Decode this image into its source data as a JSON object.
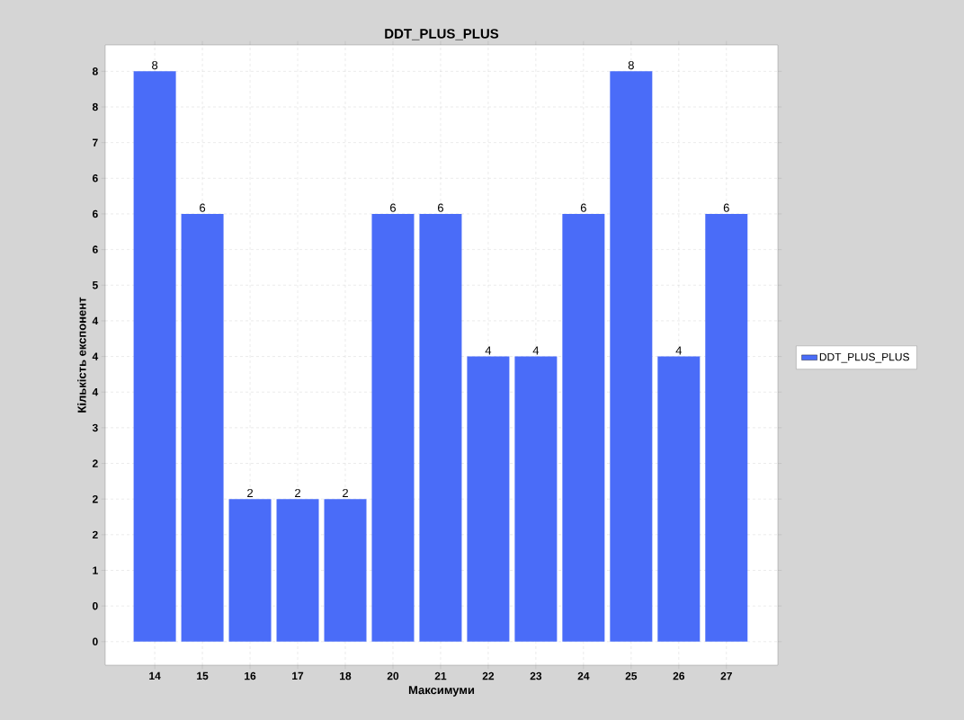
{
  "chart_data": {
    "type": "bar",
    "title": "DDT_PLUS_PLUS",
    "xlabel": "Максимуми",
    "ylabel": "Кількість експонент",
    "categories": [
      "14",
      "15",
      "16",
      "17",
      "18",
      "20",
      "21",
      "22",
      "23",
      "24",
      "25",
      "26",
      "27"
    ],
    "series": [
      {
        "name": "DDT_PLUS_PLUS",
        "color": "#4a6cf8",
        "values": [
          8,
          6,
          2,
          2,
          2,
          6,
          6,
          4,
          4,
          6,
          8,
          4,
          6
        ]
      }
    ],
    "ylim": [
      -0.33,
      8.37
    ],
    "yticks": [
      0,
      {
        "value": 0.5,
        "label": "0"
      },
      1,
      {
        "value": 1.5,
        "label": "2"
      },
      2,
      {
        "value": 2.5,
        "label": "2"
      },
      3,
      {
        "value": 3.5,
        "label": "4"
      },
      4,
      {
        "value": 4.5,
        "label": "4"
      },
      5,
      {
        "value": 5.5,
        "label": "6"
      },
      6,
      {
        "value": 6.5,
        "label": "6"
      },
      7,
      {
        "value": 7.5,
        "label": "8"
      },
      8
    ],
    "grid": true,
    "legend": "right",
    "data_labels": true
  }
}
